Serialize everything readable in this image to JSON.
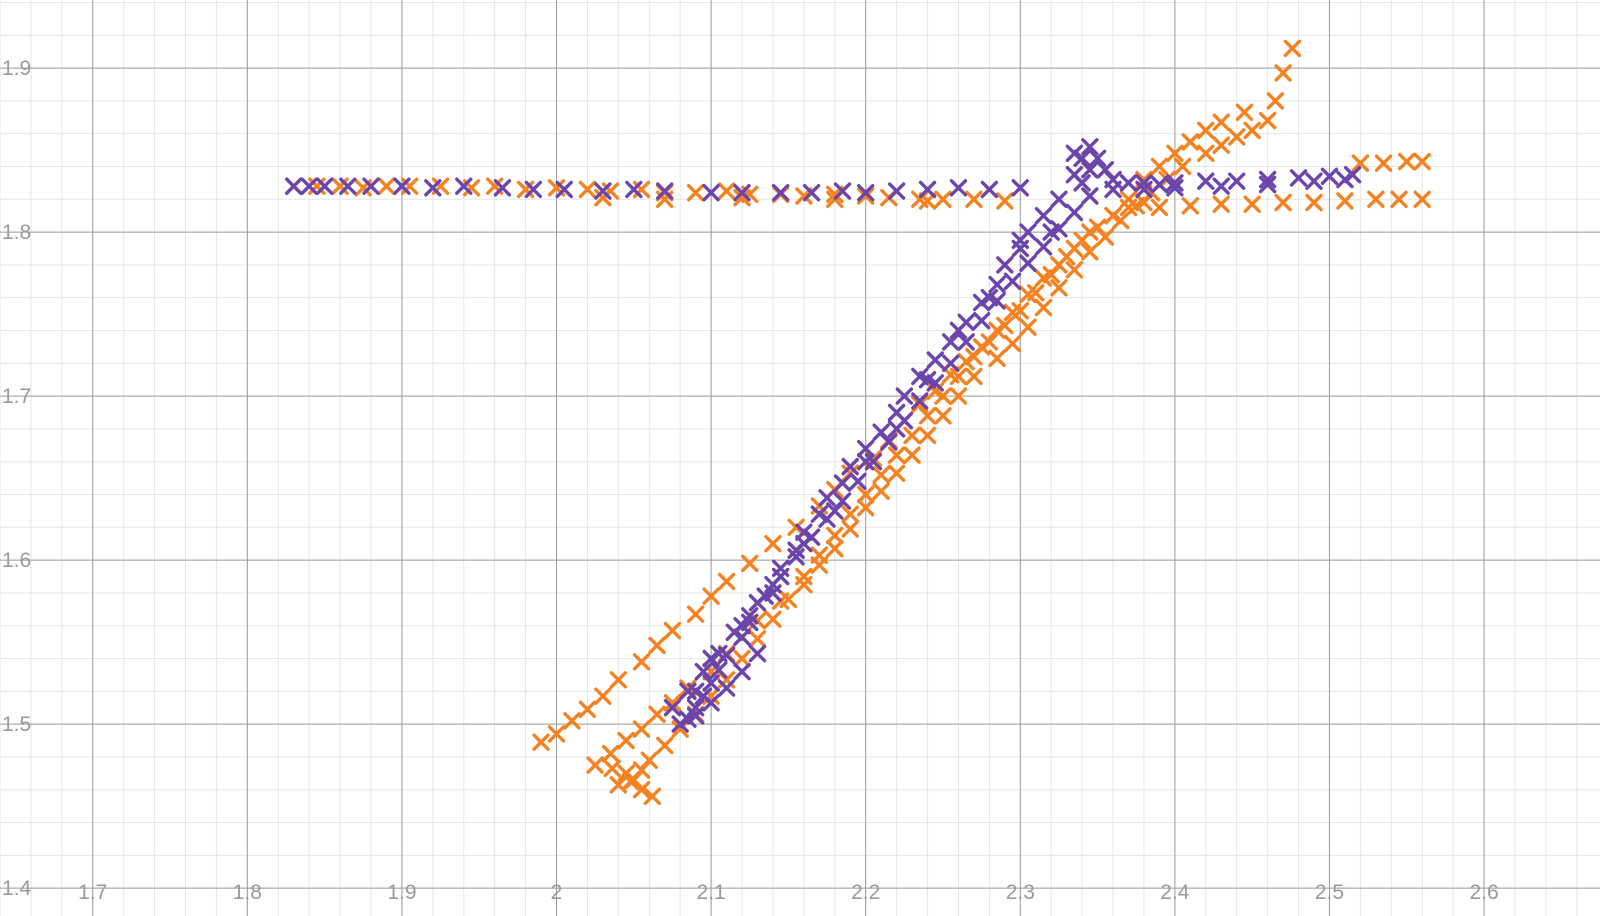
{
  "chart_data": {
    "type": "scatter",
    "title": "",
    "xlabel": "",
    "ylabel": "",
    "xlim": [
      1.64,
      2.675
    ],
    "ylim": [
      1.383,
      1.9415
    ],
    "grid": true,
    "marker": "x",
    "x_ticks": [
      "1.7",
      "1.8",
      "1.9",
      "2",
      "2.1",
      "2.2",
      "2.3",
      "2.4",
      "2.5",
      "2.6"
    ],
    "y_ticks": [
      "1.4",
      "1.5",
      "1.6",
      "1.7",
      "1.8",
      "1.9"
    ],
    "series": [
      {
        "color": "#f58220",
        "points": [
          [
            1.83,
            1.828
          ],
          [
            1.845,
            1.828
          ],
          [
            1.86,
            1.828
          ],
          [
            1.875,
            1.827
          ],
          [
            1.89,
            1.828
          ],
          [
            1.905,
            1.828
          ],
          [
            1.925,
            1.828
          ],
          [
            1.945,
            1.827
          ],
          [
            1.96,
            1.828
          ],
          [
            1.98,
            1.826
          ],
          [
            2.0,
            1.827
          ],
          [
            2.02,
            1.826
          ],
          [
            2.035,
            1.825
          ],
          [
            2.055,
            1.826
          ],
          [
            2.07,
            1.824
          ],
          [
            2.09,
            1.824
          ],
          [
            2.11,
            1.825
          ],
          [
            2.125,
            1.823
          ],
          [
            2.145,
            1.823
          ],
          [
            2.16,
            1.822
          ],
          [
            2.18,
            1.823
          ],
          [
            2.2,
            1.822
          ],
          [
            2.215,
            1.821
          ],
          [
            2.235,
            1.82
          ],
          [
            2.25,
            1.82
          ],
          [
            2.27,
            1.82
          ],
          [
            2.29,
            1.819
          ],
          [
            2.03,
            1.821
          ],
          [
            2.07,
            1.82
          ],
          [
            2.12,
            1.821
          ],
          [
            2.18,
            1.82
          ],
          [
            2.24,
            1.819
          ],
          [
            1.99,
            1.489
          ],
          [
            2.0,
            1.494
          ],
          [
            2.01,
            1.502
          ],
          [
            2.02,
            1.509
          ],
          [
            2.03,
            1.517
          ],
          [
            2.04,
            1.527
          ],
          [
            2.055,
            1.538
          ],
          [
            2.065,
            1.548
          ],
          [
            2.075,
            1.557
          ],
          [
            2.09,
            1.567
          ],
          [
            2.1,
            1.578
          ],
          [
            2.11,
            1.587
          ],
          [
            2.125,
            1.598
          ],
          [
            2.14,
            1.61
          ],
          [
            2.155,
            1.62
          ],
          [
            2.17,
            1.633
          ],
          [
            2.18,
            1.643
          ],
          [
            2.19,
            1.653
          ],
          [
            2.205,
            1.662
          ],
          [
            2.215,
            1.673
          ],
          [
            2.225,
            1.685
          ],
          [
            2.235,
            1.695
          ],
          [
            2.245,
            1.703
          ],
          [
            2.255,
            1.713
          ],
          [
            2.265,
            1.721
          ],
          [
            2.275,
            1.73
          ],
          [
            2.285,
            1.74
          ],
          [
            2.295,
            1.751
          ],
          [
            2.305,
            1.762
          ],
          [
            2.315,
            1.772
          ],
          [
            2.325,
            1.78
          ],
          [
            2.335,
            1.79
          ],
          [
            2.345,
            1.8
          ],
          [
            2.36,
            1.81
          ],
          [
            2.37,
            1.82
          ],
          [
            2.38,
            1.832
          ],
          [
            2.39,
            1.84
          ],
          [
            2.4,
            1.848
          ],
          [
            2.41,
            1.855
          ],
          [
            2.42,
            1.862
          ],
          [
            2.43,
            1.867
          ],
          [
            2.445,
            1.873
          ],
          [
            2.025,
            1.475
          ],
          [
            2.035,
            1.482
          ],
          [
            2.045,
            1.49
          ],
          [
            2.055,
            1.497
          ],
          [
            2.065,
            1.506
          ],
          [
            2.075,
            1.513
          ],
          [
            2.085,
            1.522
          ],
          [
            2.1,
            1.532
          ],
          [
            2.11,
            1.543
          ],
          [
            2.12,
            1.553
          ],
          [
            2.13,
            1.563
          ],
          [
            2.145,
            1.575
          ],
          [
            2.16,
            1.585
          ],
          [
            2.17,
            1.597
          ],
          [
            2.18,
            1.607
          ],
          [
            2.19,
            1.619
          ],
          [
            2.2,
            1.632
          ],
          [
            2.21,
            1.642
          ],
          [
            2.22,
            1.653
          ],
          [
            2.23,
            1.664
          ],
          [
            2.24,
            1.676
          ],
          [
            2.25,
            1.688
          ],
          [
            2.26,
            1.7
          ],
          [
            2.27,
            1.712
          ],
          [
            2.285,
            1.723
          ],
          [
            2.295,
            1.732
          ],
          [
            2.305,
            1.742
          ],
          [
            2.315,
            1.754
          ],
          [
            2.325,
            1.766
          ],
          [
            2.335,
            1.777
          ],
          [
            2.345,
            1.788
          ],
          [
            2.355,
            1.797
          ],
          [
            2.365,
            1.807
          ],
          [
            2.375,
            1.816
          ],
          [
            2.385,
            1.824
          ],
          [
            2.395,
            1.832
          ],
          [
            2.405,
            1.84
          ],
          [
            2.42,
            1.848
          ],
          [
            2.43,
            1.853
          ],
          [
            2.44,
            1.858
          ],
          [
            2.45,
            1.862
          ],
          [
            2.46,
            1.868
          ],
          [
            2.465,
            1.88
          ],
          [
            2.47,
            1.897
          ],
          [
            2.476,
            1.912
          ],
          [
            2.04,
            1.463
          ],
          [
            2.05,
            1.466
          ],
          [
            2.055,
            1.472
          ],
          [
            2.06,
            1.478
          ],
          [
            2.07,
            1.487
          ],
          [
            2.08,
            1.497
          ],
          [
            2.09,
            1.506
          ],
          [
            2.1,
            1.517
          ],
          [
            2.11,
            1.527
          ],
          [
            2.12,
            1.54
          ],
          [
            2.13,
            1.552
          ],
          [
            2.14,
            1.564
          ],
          [
            2.15,
            1.576
          ],
          [
            2.16,
            1.59
          ],
          [
            2.17,
            1.603
          ],
          [
            2.18,
            1.615
          ],
          [
            2.19,
            1.628
          ],
          [
            2.2,
            1.64
          ],
          [
            2.21,
            1.652
          ],
          [
            2.22,
            1.664
          ],
          [
            2.23,
            1.676
          ],
          [
            2.24,
            1.688
          ],
          [
            2.25,
            1.7
          ],
          [
            2.26,
            1.712
          ],
          [
            2.27,
            1.724
          ],
          [
            2.28,
            1.733
          ],
          [
            2.29,
            1.743
          ],
          [
            2.3,
            1.752
          ],
          [
            2.31,
            1.763
          ],
          [
            2.32,
            1.774
          ],
          [
            2.33,
            1.785
          ],
          [
            2.34,
            1.795
          ],
          [
            2.35,
            1.803
          ],
          [
            2.36,
            1.81
          ],
          [
            2.37,
            1.815
          ],
          [
            2.38,
            1.818
          ],
          [
            2.39,
            1.815
          ],
          [
            2.41,
            1.816
          ],
          [
            2.43,
            1.817
          ],
          [
            2.45,
            1.817
          ],
          [
            2.47,
            1.818
          ],
          [
            2.49,
            1.818
          ],
          [
            2.51,
            1.819
          ],
          [
            2.53,
            1.82
          ],
          [
            2.545,
            1.82
          ],
          [
            2.56,
            1.82
          ],
          [
            2.52,
            1.842
          ],
          [
            2.535,
            1.842
          ],
          [
            2.55,
            1.843
          ],
          [
            2.56,
            1.843
          ],
          [
            2.062,
            1.456
          ],
          [
            2.055,
            1.46
          ],
          [
            2.048,
            1.465
          ],
          [
            2.036,
            1.473
          ],
          [
            2.045,
            1.47
          ]
        ]
      },
      {
        "color": "#6b44ac",
        "points": [
          [
            1.83,
            1.828
          ],
          [
            1.84,
            1.828
          ],
          [
            1.85,
            1.828
          ],
          [
            1.865,
            1.828
          ],
          [
            1.88,
            1.828
          ],
          [
            1.9,
            1.828
          ],
          [
            1.92,
            1.827
          ],
          [
            1.94,
            1.828
          ],
          [
            1.965,
            1.827
          ],
          [
            1.985,
            1.826
          ],
          [
            2.005,
            1.826
          ],
          [
            2.03,
            1.825
          ],
          [
            2.05,
            1.826
          ],
          [
            2.07,
            1.825
          ],
          [
            2.1,
            1.824
          ],
          [
            2.12,
            1.824
          ],
          [
            2.145,
            1.824
          ],
          [
            2.165,
            1.824
          ],
          [
            2.185,
            1.825
          ],
          [
            2.2,
            1.824
          ],
          [
            2.22,
            1.825
          ],
          [
            2.24,
            1.826
          ],
          [
            2.26,
            1.827
          ],
          [
            2.28,
            1.826
          ],
          [
            2.3,
            1.827
          ],
          [
            2.085,
            1.503
          ],
          [
            2.09,
            1.51
          ],
          [
            2.095,
            1.517
          ],
          [
            2.1,
            1.525
          ],
          [
            2.105,
            1.533
          ],
          [
            2.11,
            1.542
          ],
          [
            2.12,
            1.553
          ],
          [
            2.125,
            1.562
          ],
          [
            2.13,
            1.574
          ],
          [
            2.14,
            1.585
          ],
          [
            2.145,
            1.595
          ],
          [
            2.155,
            1.606
          ],
          [
            2.16,
            1.617
          ],
          [
            2.17,
            1.628
          ],
          [
            2.175,
            1.638
          ],
          [
            2.185,
            1.647
          ],
          [
            2.19,
            1.657
          ],
          [
            2.2,
            1.668
          ],
          [
            2.21,
            1.678
          ],
          [
            2.22,
            1.69
          ],
          [
            2.225,
            1.7
          ],
          [
            2.235,
            1.712
          ],
          [
            2.245,
            1.722
          ],
          [
            2.255,
            1.733
          ],
          [
            2.265,
            1.745
          ],
          [
            2.275,
            1.757
          ],
          [
            2.285,
            1.768
          ],
          [
            2.29,
            1.78
          ],
          [
            2.3,
            1.79
          ],
          [
            2.305,
            1.8
          ],
          [
            2.315,
            1.81
          ],
          [
            2.325,
            1.82
          ],
          [
            2.335,
            1.835
          ],
          [
            2.34,
            1.845
          ],
          [
            2.075,
            1.51
          ],
          [
            2.085,
            1.52
          ],
          [
            2.095,
            1.532
          ],
          [
            2.105,
            1.543
          ],
          [
            2.115,
            1.556
          ],
          [
            2.125,
            1.566
          ],
          [
            2.135,
            1.578
          ],
          [
            2.145,
            1.59
          ],
          [
            2.155,
            1.602
          ],
          [
            2.165,
            1.614
          ],
          [
            2.175,
            1.625
          ],
          [
            2.185,
            1.636
          ],
          [
            2.195,
            1.648
          ],
          [
            2.205,
            1.66
          ],
          [
            2.215,
            1.672
          ],
          [
            2.225,
            1.685
          ],
          [
            2.235,
            1.697
          ],
          [
            2.245,
            1.708
          ],
          [
            2.255,
            1.72
          ],
          [
            2.265,
            1.733
          ],
          [
            2.275,
            1.746
          ],
          [
            2.285,
            1.758
          ],
          [
            2.295,
            1.77
          ],
          [
            2.305,
            1.781
          ],
          [
            2.315,
            1.791
          ],
          [
            2.325,
            1.802
          ],
          [
            2.335,
            1.812
          ],
          [
            2.345,
            1.822
          ],
          [
            2.08,
            1.5
          ],
          [
            2.09,
            1.505
          ],
          [
            2.1,
            1.513
          ],
          [
            2.11,
            1.522
          ],
          [
            2.12,
            1.532
          ],
          [
            2.13,
            1.543
          ],
          [
            2.09,
            1.52
          ],
          [
            2.1,
            1.54
          ],
          [
            2.12,
            1.56
          ],
          [
            2.14,
            1.58
          ],
          [
            2.16,
            1.61
          ],
          [
            2.18,
            1.63
          ],
          [
            2.2,
            1.66
          ],
          [
            2.22,
            1.68
          ],
          [
            2.24,
            1.71
          ],
          [
            2.26,
            1.74
          ],
          [
            2.28,
            1.76
          ],
          [
            2.3,
            1.795
          ],
          [
            2.32,
            1.8
          ],
          [
            2.335,
            1.848
          ],
          [
            2.345,
            1.852
          ],
          [
            2.35,
            1.845
          ],
          [
            2.355,
            1.838
          ],
          [
            2.36,
            1.832
          ],
          [
            2.37,
            1.83
          ],
          [
            2.38,
            1.83
          ],
          [
            2.39,
            1.829
          ],
          [
            2.4,
            1.83
          ],
          [
            2.42,
            1.831
          ],
          [
            2.44,
            1.831
          ],
          [
            2.46,
            1.832
          ],
          [
            2.48,
            1.833
          ],
          [
            2.5,
            1.834
          ],
          [
            2.515,
            1.835
          ],
          [
            2.36,
            1.826
          ],
          [
            2.38,
            1.826
          ],
          [
            2.4,
            1.827
          ],
          [
            2.43,
            1.828
          ],
          [
            2.46,
            1.829
          ],
          [
            2.49,
            1.831
          ],
          [
            2.51,
            1.832
          ],
          [
            2.345,
            1.838
          ],
          [
            2.34,
            1.83
          ]
        ]
      }
    ]
  }
}
